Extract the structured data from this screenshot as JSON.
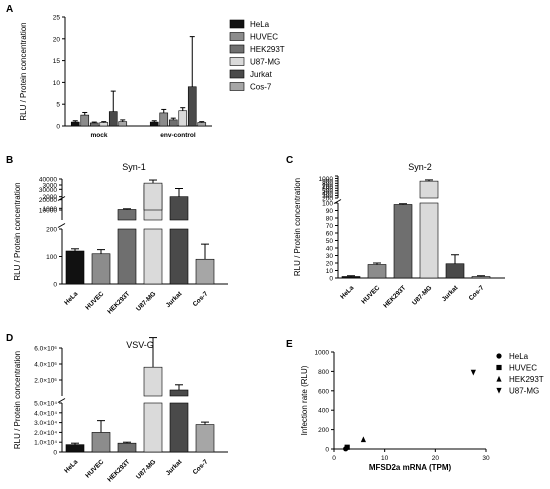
{
  "figure": {
    "panels": [
      {
        "letter": "A"
      },
      {
        "letter": "B",
        "title": "Syn-1"
      },
      {
        "letter": "C",
        "title": "Syn-2"
      },
      {
        "letter": "D",
        "title": "VSV-G"
      },
      {
        "letter": "E"
      }
    ]
  },
  "colors": {
    "HeLa": "#111111",
    "HUVEC": "#8c8c8c",
    "HEK293T": "#6f6f6f",
    "U87-MG": "#dadada",
    "Jurkat": "#4a4a4a",
    "Cos-7": "#a6a6a6"
  },
  "chart_data": [
    {
      "panel": "A",
      "type": "bar",
      "ylabel": "RLU / Protein concentration",
      "ylim": [
        0,
        25
      ],
      "yticks": [
        0,
        5,
        10,
        15,
        20,
        25
      ],
      "categories": [
        "mock",
        "env-control"
      ],
      "legend_position": "right",
      "series": [
        {
          "name": "HeLa",
          "values": [
            0.9,
            0.9
          ],
          "errors": [
            0.3,
            0.3
          ]
        },
        {
          "name": "HUVEC",
          "values": [
            2.5,
            3.0
          ],
          "errors": [
            0.6,
            0.8
          ]
        },
        {
          "name": "HEK293T",
          "values": [
            0.7,
            1.4
          ],
          "errors": [
            0.2,
            0.4
          ]
        },
        {
          "name": "U87-MG",
          "values": [
            0.8,
            3.5
          ],
          "errors": [
            0.2,
            0.7
          ]
        },
        {
          "name": "Jurkat",
          "values": [
            3.3,
            9.0
          ],
          "errors": [
            4.7,
            11.5
          ]
        },
        {
          "name": "Cos-7",
          "values": [
            1.0,
            0.8
          ],
          "errors": [
            0.4,
            0.2
          ]
        }
      ]
    },
    {
      "panel": "B",
      "type": "bar",
      "title": "Syn-1",
      "ylabel": "RLU / Protein concentration",
      "categories": [
        "HeLa",
        "HUVEC",
        "HEK293T",
        "U87-MG",
        "Jurkat",
        "Cos-7"
      ],
      "values": [
        120,
        110,
        900,
        36000,
        2000,
        90
      ],
      "errors": [
        8,
        15,
        60,
        3000,
        700,
        55
      ],
      "broken_axis": {
        "segments": [
          {
            "range": [
              0,
              200
            ],
            "ticks": [
              0,
              100,
              200
            ]
          },
          {
            "range": [
              0,
              3000
            ],
            "ticks": [
              1000,
              2000,
              3000
            ]
          },
          {
            "range": [
              10000,
              40000
            ],
            "ticks": [
              10000,
              20000,
              30000,
              40000
            ]
          }
        ]
      },
      "tick_labels": [
        "0",
        "100",
        "200",
        "1000",
        "2000",
        "3000",
        "10000",
        "20000",
        "30000",
        "40000"
      ]
    },
    {
      "panel": "C",
      "type": "bar",
      "title": "Syn-2",
      "ylabel": "RLU / Protein concentration",
      "categories": [
        "HeLa",
        "HUVEC",
        "HEK293T",
        "U87-MG",
        "Jurkat",
        "Cos-7"
      ],
      "values": [
        2,
        18,
        98,
        790,
        19,
        2
      ],
      "errors": [
        1,
        2,
        1,
        50,
        12,
        1
      ],
      "broken_axis": {
        "segments": [
          {
            "range": [
              0,
              100
            ],
            "ticks": [
              0,
              10,
              20,
              30,
              40,
              50,
              60,
              70,
              80,
              90,
              100
            ]
          },
          {
            "range": [
              100,
              1000
            ],
            "ticks": [
              100,
              200,
              300,
              400,
              500,
              600,
              700,
              800,
              900,
              1000
            ]
          }
        ]
      },
      "tick_labels": [
        "0",
        "10",
        "20",
        "30",
        "40",
        "50",
        "60",
        "70",
        "80",
        "90",
        "100",
        "200",
        "300",
        "400",
        "500",
        "600",
        "700",
        "800",
        "900",
        "1000"
      ]
    },
    {
      "panel": "D",
      "type": "bar",
      "title": "VSV-G",
      "ylabel": "RLU / Protein concentration",
      "categories": [
        "HeLa",
        "HUVEC",
        "HEK293T",
        "U87-MG",
        "Jurkat",
        "Cos-7"
      ],
      "values": [
        7500,
        20000,
        9000,
        3600000,
        750000,
        28000
      ],
      "errors": [
        1500,
        12000,
        1000,
        3700000,
        650000,
        2500
      ],
      "broken_axis": {
        "segments": [
          {
            "range": [
              0,
              50000
            ],
            "ticks": [
              0,
              10000,
              20000,
              30000,
              40000,
              50000
            ]
          },
          {
            "range": [
              0,
              6000000
            ],
            "ticks": [
              2000000,
              4000000,
              6000000
            ]
          }
        ]
      },
      "tick_labels": [
        "0",
        "1.0×10⁴",
        "2.0×10⁴",
        "3.0×10⁴",
        "4.0×10⁴",
        "5.0×10⁴",
        "2.0×10⁶",
        "4.0×10⁶",
        "6.0×10⁶"
      ]
    },
    {
      "panel": "E",
      "type": "scatter",
      "xlabel": "MFSD2a mRNA (TPM)",
      "ylabel": "Infection rate (RLU)",
      "xlim": [
        0,
        30
      ],
      "ylim": [
        0,
        1000
      ],
      "xticks": [
        0,
        10,
        20,
        30
      ],
      "yticks": [
        0,
        200,
        400,
        600,
        800,
        1000
      ],
      "legend_position": "right",
      "series": [
        {
          "name": "HeLa",
          "marker": "circle",
          "x": [
            2.3
          ],
          "y": [
            2
          ]
        },
        {
          "name": "HUVEC",
          "marker": "square",
          "x": [
            2.6
          ],
          "y": [
            18
          ]
        },
        {
          "name": "HEK293T",
          "marker": "triangle-up",
          "x": [
            5.8
          ],
          "y": [
            98
          ]
        },
        {
          "name": "U87-MG",
          "marker": "triangle-down",
          "x": [
            27.5
          ],
          "y": [
            790
          ]
        }
      ]
    }
  ]
}
